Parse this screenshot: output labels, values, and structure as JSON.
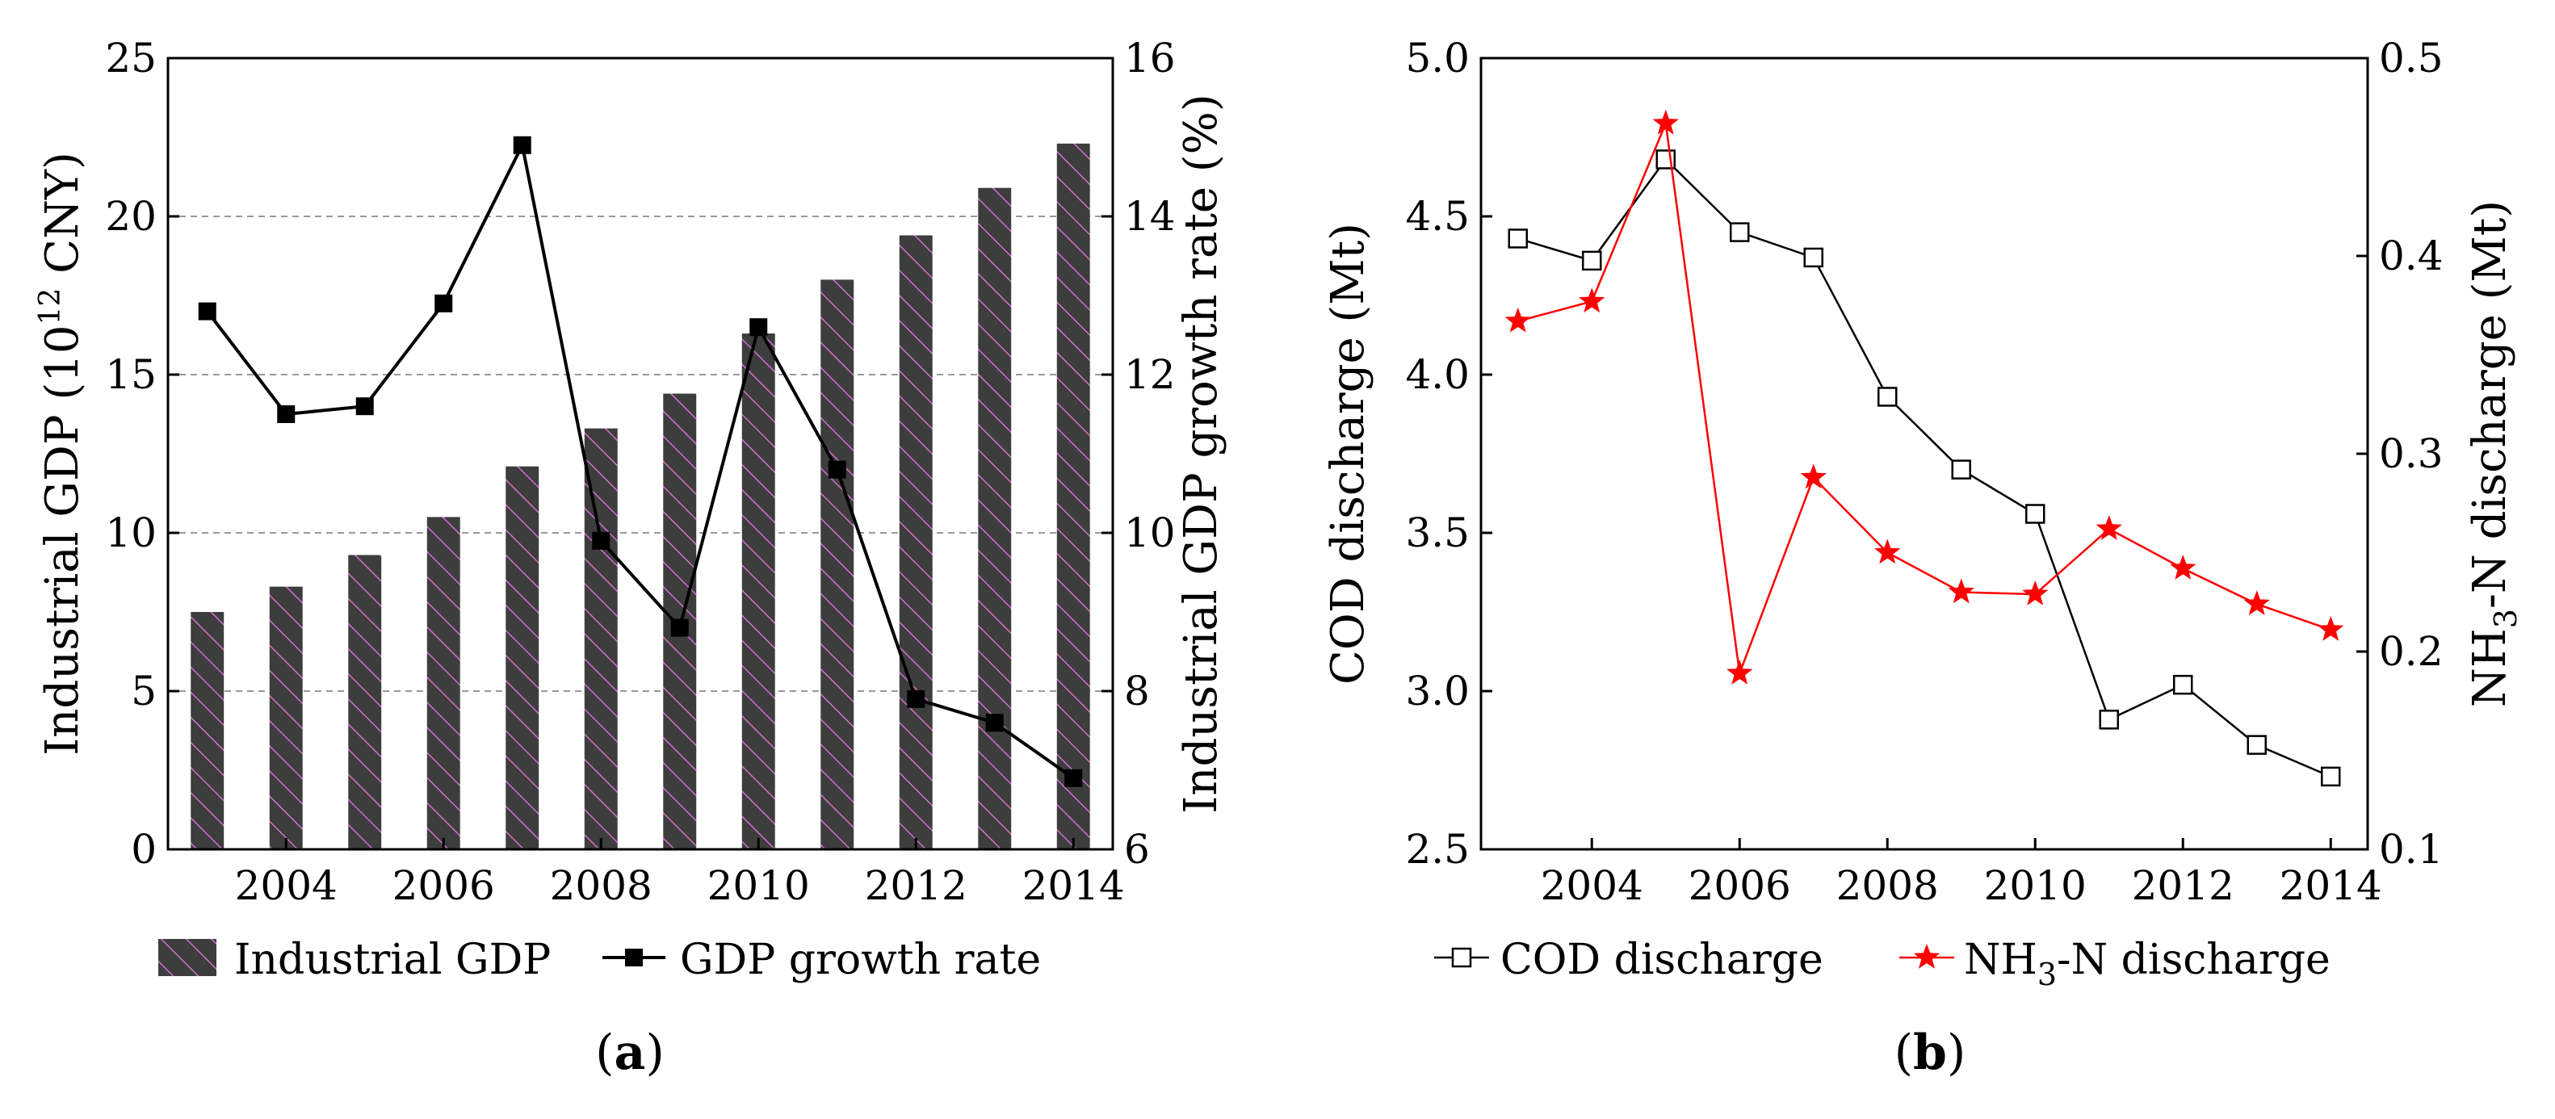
{
  "chart_data": [
    {
      "type": "bar",
      "panel_label": "a",
      "categories": [
        "2003",
        "2004",
        "2005",
        "2006",
        "2007",
        "2008",
        "2009",
        "2010",
        "2011",
        "2012",
        "2013",
        "2014"
      ],
      "x_tick_labels": [
        "2004",
        "2006",
        "2008",
        "2010",
        "2012",
        "2014"
      ],
      "series": [
        {
          "name": "Industrial GDP",
          "type": "bar",
          "axis": "left",
          "values": [
            7.5,
            8.3,
            9.3,
            10.5,
            12.1,
            13.3,
            14.4,
            16.3,
            18.0,
            19.4,
            20.9,
            22.3
          ]
        },
        {
          "name": "GDP growth rate",
          "type": "line",
          "axis": "right",
          "values": [
            12.8,
            11.5,
            11.6,
            12.9,
            14.9,
            9.9,
            8.8,
            12.6,
            10.8,
            7.9,
            7.6,
            6.9
          ]
        }
      ],
      "ylabel_left": "Industrial GDP (10",
      "ylabel_left_sup": "12",
      "ylabel_left_tail": " CNY)",
      "ylabel_right": "Industrial GDP growth rate (%)",
      "ylim_left": [
        0,
        25
      ],
      "yticks_left": [
        "0",
        "5",
        "10",
        "15",
        "20",
        "25"
      ],
      "ylim_right": [
        6,
        16
      ],
      "yticks_right": [
        "6",
        "8",
        "10",
        "12",
        "14",
        "16"
      ],
      "grid": "horizontal dashed",
      "legend": {
        "placement": "bottom",
        "items": [
          "Industrial GDP",
          "GDP growth rate"
        ]
      },
      "colors": {
        "bar": "#3d3d3d",
        "hatch": "#d070d0",
        "line": "#000000"
      }
    },
    {
      "type": "line",
      "panel_label": "b",
      "x": [
        "2003",
        "2004",
        "2005",
        "2006",
        "2007",
        "2008",
        "2009",
        "2010",
        "2011",
        "2012",
        "2013",
        "2014"
      ],
      "x_tick_labels": [
        "2004",
        "2006",
        "2008",
        "2010",
        "2012",
        "2014"
      ],
      "series": [
        {
          "name": "COD discharge",
          "axis": "left",
          "marker": "open-square",
          "values": [
            4.43,
            4.36,
            4.68,
            4.45,
            4.37,
            3.93,
            3.7,
            3.56,
            2.91,
            3.02,
            2.83,
            2.73
          ]
        },
        {
          "name_prefix": "NH",
          "name_sub": "3",
          "name_suffix": "-N discharge",
          "axis": "right",
          "marker": "star",
          "values": [
            0.367,
            0.377,
            0.467,
            0.189,
            0.288,
            0.25,
            0.23,
            0.229,
            0.262,
            0.242,
            0.224,
            0.211
          ]
        }
      ],
      "ylabel_left": "COD discharge (Mt)",
      "ylabel_right_prefix": "NH",
      "ylabel_right_sub": "3",
      "ylabel_right_suffix": "-N discharge (Mt)",
      "ylim_left": [
        2.5,
        5.0
      ],
      "yticks_left": [
        "2.5",
        "3.0",
        "3.5",
        "4.0",
        "4.5",
        "5.0"
      ],
      "ylim_right": [
        0.1,
        0.5
      ],
      "yticks_right": [
        "0.1",
        "0.2",
        "0.3",
        "0.4",
        "0.5"
      ],
      "grid": false,
      "legend": {
        "placement": "bottom"
      },
      "colors": {
        "cod": "#000000",
        "nh3": "#ff0000"
      }
    }
  ],
  "captions": {
    "a": {
      "open": "(",
      "label": "a",
      "close": ")"
    },
    "b": {
      "open": "(",
      "label": "b",
      "close": ")"
    }
  }
}
